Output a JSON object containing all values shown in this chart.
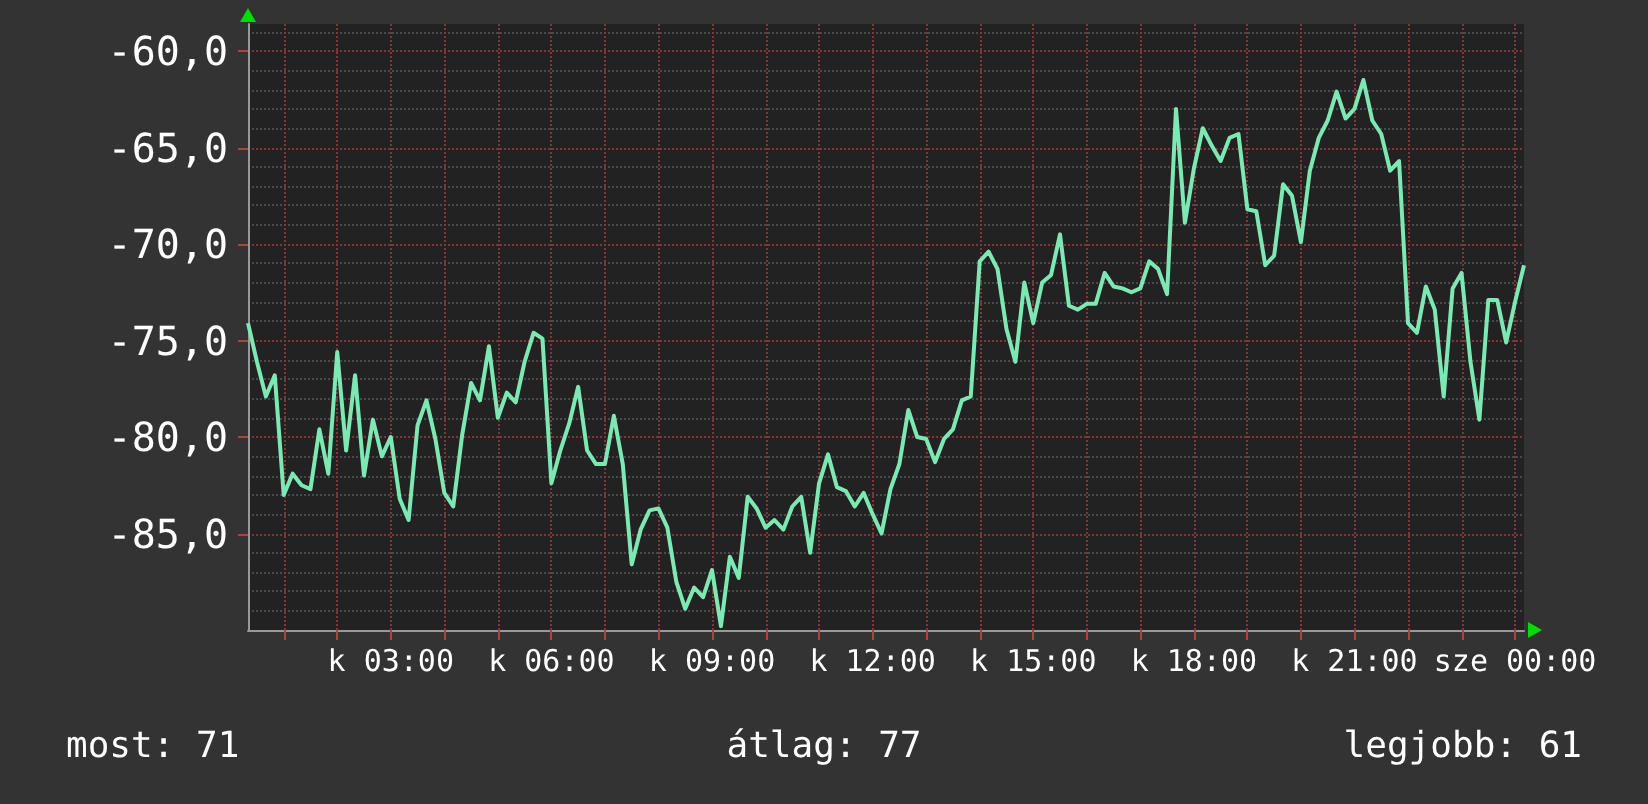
{
  "chart_data": {
    "type": "line",
    "categories": [
      null,
      null,
      null,
      null,
      null,
      null,
      null,
      null,
      null,
      null,
      null,
      null,
      null,
      null,
      null,
      null,
      "k 03:00",
      null,
      null,
      null,
      null,
      null,
      null,
      null,
      null,
      null,
      null,
      null,
      null,
      null,
      null,
      null,
      null,
      null,
      "k 06:00",
      null,
      null,
      null,
      null,
      null,
      null,
      null,
      null,
      null,
      null,
      null,
      null,
      null,
      null,
      null,
      null,
      null,
      "k 09:00",
      null,
      null,
      null,
      null,
      null,
      null,
      null,
      null,
      null,
      null,
      null,
      null,
      null,
      null,
      null,
      null,
      null,
      "k 12:00",
      null,
      null,
      null,
      null,
      null,
      null,
      null,
      null,
      null,
      null,
      null,
      null,
      null,
      null,
      null,
      null,
      null,
      "k 15:00",
      null,
      null,
      null,
      null,
      null,
      null,
      null,
      null,
      null,
      null,
      null,
      null,
      null,
      null,
      null,
      null,
      null,
      "k 18:00",
      null,
      null,
      null,
      null,
      null,
      null,
      null,
      null,
      null,
      null,
      null,
      null,
      null,
      null,
      null,
      null,
      null,
      "k 21:00",
      null,
      null,
      null,
      null,
      null,
      null,
      null,
      null,
      null,
      null,
      null,
      null,
      null,
      null,
      null,
      null,
      null,
      "sze 00:00",
      null
    ],
    "series": [
      {
        "color": "#7ee8b4",
        "values": [
          -74.1,
          -76.1,
          -77.9,
          -76.8,
          -83.0,
          -81.9,
          -82.5,
          -82.7,
          -79.6,
          -81.9,
          -75.6,
          -80.7,
          -76.8,
          -82.0,
          -79.1,
          -81.0,
          -80.0,
          -83.2,
          -84.3,
          -79.4,
          -78.1,
          -80.1,
          -82.9,
          -83.6,
          -79.9,
          -77.2,
          -78.1,
          -75.3,
          -79.0,
          -77.7,
          -78.2,
          -76.1,
          -74.6,
          -74.9,
          -82.4,
          -80.7,
          -79.3,
          -77.4,
          -80.7,
          -81.4,
          -81.4,
          -78.9,
          -81.4,
          -86.6,
          -84.8,
          -83.8,
          -83.7,
          -84.7,
          -87.5,
          -88.9,
          -87.8,
          -88.3,
          -86.9,
          -89.8,
          -86.2,
          -87.3,
          -83.1,
          -83.7,
          -84.7,
          -84.3,
          -84.8,
          -83.6,
          -83.1,
          -86.0,
          -82.4,
          -80.9,
          -82.6,
          -82.8,
          -83.6,
          -82.9,
          -84.0,
          -85.0,
          -82.7,
          -81.4,
          -78.6,
          -80.0,
          -80.1,
          -81.3,
          -80.1,
          -79.6,
          -78.1,
          -77.9,
          -70.9,
          -70.4,
          -71.3,
          -74.4,
          -76.1,
          -72.0,
          -74.1,
          -72.0,
          -71.6,
          -69.5,
          -73.2,
          -73.4,
          -73.1,
          -73.1,
          -71.5,
          -72.2,
          -72.3,
          -72.5,
          -72.3,
          -70.9,
          -71.3,
          -72.6,
          -63.0,
          -68.9,
          -66.1,
          -64.0,
          -64.9,
          -65.7,
          -64.5,
          -64.3,
          -68.2,
          -68.3,
          -71.1,
          -70.6,
          -66.9,
          -67.5,
          -69.9,
          -66.2,
          -64.5,
          -63.6,
          -62.1,
          -63.5,
          -63.0,
          -61.5,
          -63.6,
          -64.3,
          -66.2,
          -65.7,
          -74.1,
          -74.6,
          -72.2,
          -73.4,
          -77.9,
          -72.3,
          -71.5,
          -76.1,
          -79.1,
          -72.9,
          -72.9,
          -75.1,
          -73.0,
          -71.1
        ]
      }
    ],
    "ylim": [
      -90,
      -58.6
    ],
    "yticks": [
      {
        "value": -85,
        "label": "-85,0"
      },
      {
        "value": -80,
        "label": "-80,0"
      },
      {
        "value": -75,
        "label": "-75,0"
      },
      {
        "value": -70,
        "label": "-70,0"
      },
      {
        "value": -65,
        "label": "-65,0"
      },
      {
        "value": -60,
        "label": "-60,0"
      }
    ],
    "grid": true,
    "marker": "none",
    "line_style": "solid",
    "annotations": [
      "most: 71",
      "átlag: 77",
      "legjobb: 61"
    ]
  }
}
